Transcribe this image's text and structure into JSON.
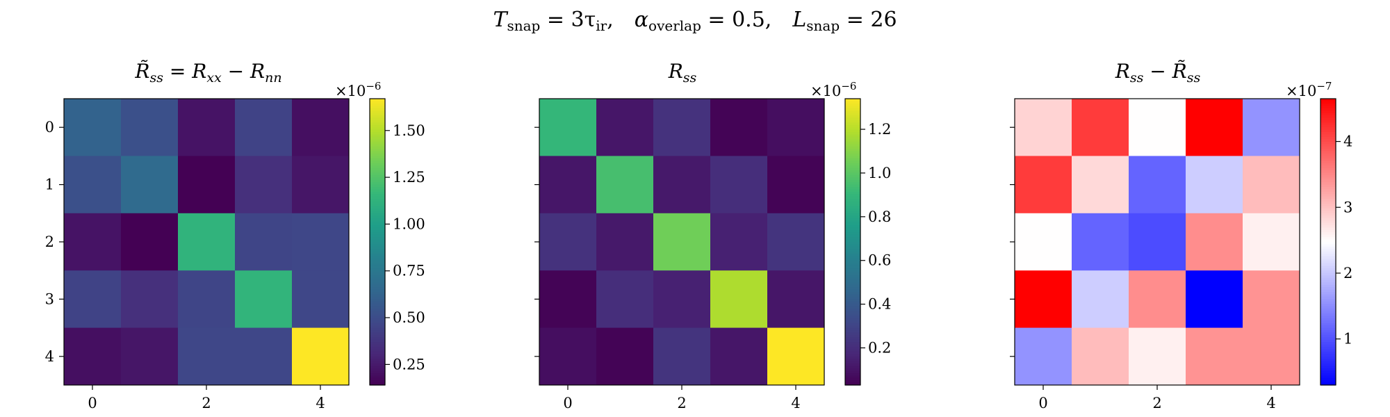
{
  "figure": {
    "suptitle": {
      "T_base": "T",
      "T_sub": "snap",
      "T_eq": " = 3τ",
      "T_eq_sub": "ir",
      "T_sep": ",",
      "alpha_base": "α",
      "alpha_sub": "overlap",
      "alpha_eq": " = 0.5,",
      "L_base": "L",
      "L_sub": "snap",
      "L_eq": " = 26"
    }
  },
  "chart_data": [
    {
      "type": "heatmap",
      "title": {
        "base": "R̃",
        "sub": "ss",
        "eq": " = R",
        "sub2": "xx",
        "minus": " − R",
        "sub3": "nn"
      },
      "x_ticks": [
        "0",
        "2",
        "4"
      ],
      "y_ticks": [
        "0",
        "1",
        "2",
        "3",
        "4"
      ],
      "colormap": "viridis",
      "colorbar": {
        "vmin": 0.14,
        "vmax": 1.67,
        "ticks": [
          0.25,
          0.5,
          0.75,
          1.0,
          1.25,
          1.5
        ],
        "tick_labels": [
          "0.25",
          "0.50",
          "0.75",
          "1.00",
          "1.25",
          "1.50"
        ],
        "offset_base": "×10",
        "offset_exp": "−6"
      },
      "matrix": [
        [
          0.62,
          0.52,
          0.22,
          0.45,
          0.2
        ],
        [
          0.52,
          0.67,
          0.14,
          0.35,
          0.23
        ],
        [
          0.22,
          0.14,
          1.13,
          0.46,
          0.47
        ],
        [
          0.45,
          0.35,
          0.46,
          1.14,
          0.47
        ],
        [
          0.2,
          0.23,
          0.47,
          0.47,
          1.67
        ]
      ]
    },
    {
      "type": "heatmap",
      "title": {
        "base": "R",
        "sub": "ss"
      },
      "x_ticks": [
        "0",
        "2",
        "4"
      ],
      "y_ticks": [],
      "colormap": "viridis",
      "colorbar": {
        "vmin": 0.03,
        "vmax": 1.34,
        "ticks": [
          0.2,
          0.4,
          0.6,
          0.8,
          1.0,
          1.2
        ],
        "tick_labels": [
          "0.2",
          "0.4",
          "0.6",
          "0.8",
          "1.0",
          "1.2"
        ],
        "offset_base": "×10",
        "offset_exp": "−6"
      },
      "matrix": [
        [
          0.9,
          0.11,
          0.22,
          0.04,
          0.08
        ],
        [
          0.11,
          0.95,
          0.12,
          0.2,
          0.04
        ],
        [
          0.22,
          0.12,
          1.05,
          0.15,
          0.23
        ],
        [
          0.04,
          0.2,
          0.15,
          1.18,
          0.11
        ],
        [
          0.08,
          0.04,
          0.23,
          0.11,
          1.34
        ]
      ]
    },
    {
      "type": "heatmap",
      "title": {
        "base": "R",
        "sub": "ss",
        "minus": " − R̃",
        "sub2": "ss"
      },
      "x_ticks": [
        "0",
        "2",
        "4"
      ],
      "y_ticks": [],
      "colormap": "bwr",
      "colorbar": {
        "vmin": 0.3,
        "vmax": 4.65,
        "ticks": [
          1,
          2,
          3,
          4
        ],
        "tick_labels": [
          "1",
          "2",
          "3",
          "4"
        ],
        "offset_base": "×10",
        "offset_exp": "−7"
      },
      "matrix": [
        [
          2.85,
          4.15,
          2.48,
          4.65,
          1.55
        ],
        [
          4.15,
          2.8,
          1.15,
          2.05,
          3.05
        ],
        [
          2.48,
          1.15,
          0.95,
          3.45,
          2.6
        ],
        [
          4.65,
          2.05,
          3.45,
          0.3,
          3.4
        ],
        [
          1.55,
          3.05,
          2.6,
          3.4,
          3.4
        ]
      ]
    }
  ]
}
